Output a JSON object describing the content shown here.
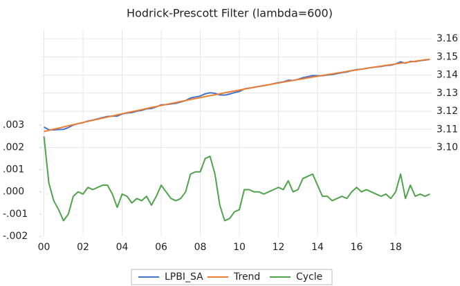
{
  "chart_data": {
    "type": "line",
    "title": "Hodrick-Prescott Filter (lambda=600)",
    "categories": [
      "00",
      null,
      null,
      null,
      null,
      null,
      null,
      null,
      "02",
      null,
      null,
      null,
      null,
      null,
      null,
      null,
      "04",
      null,
      null,
      null,
      null,
      null,
      null,
      null,
      "06",
      null,
      null,
      null,
      null,
      null,
      null,
      null,
      "08",
      null,
      null,
      null,
      null,
      null,
      null,
      null,
      "10",
      null,
      null,
      null,
      null,
      null,
      null,
      null,
      "12",
      null,
      null,
      null,
      null,
      null,
      null,
      null,
      "14",
      null,
      null,
      null,
      null,
      null,
      null,
      null,
      "16",
      null,
      null,
      null,
      null,
      null,
      null,
      null,
      "18",
      null,
      null,
      null,
      null,
      null,
      null,
      null
    ],
    "series": [
      {
        "name": "LPBI_SA",
        "color": "#4472c4",
        "axis": "y2",
        "values": [
          3.1113,
          3.1098,
          3.1097,
          3.1099,
          3.11,
          3.111,
          3.1124,
          3.1132,
          3.1137,
          3.1146,
          3.1151,
          3.1158,
          3.1165,
          3.1171,
          3.1173,
          3.1173,
          3.1185,
          3.119,
          3.1193,
          3.12,
          3.1205,
          3.1213,
          3.1215,
          3.1224,
          3.1235,
          3.1237,
          3.124,
          3.1244,
          3.1251,
          3.1259,
          3.1273,
          3.1279,
          3.1284,
          3.1296,
          3.1302,
          3.1299,
          3.129,
          3.1289,
          3.1295,
          3.1303,
          3.1309,
          3.1323,
          3.1328,
          3.1332,
          3.1337,
          3.1341,
          3.1346,
          3.1352,
          3.1358,
          3.1362,
          3.1371,
          3.137,
          3.1376,
          3.1385,
          3.1391,
          3.1397,
          3.1396,
          3.1396,
          3.14,
          3.1402,
          3.1408,
          3.1413,
          3.1417,
          3.1424,
          3.143,
          3.1432,
          3.1437,
          3.1441,
          3.1444,
          3.1447,
          3.1452,
          3.1454,
          3.1461,
          3.1473,
          3.1465,
          3.1475,
          3.1474,
          3.1479,
          3.1482,
          3.1486
        ]
      },
      {
        "name": "Trend",
        "color": "#ed7d31",
        "axis": "y2",
        "values": [
          3.1088,
          3.1094,
          3.1101,
          3.1107,
          3.1113,
          3.112,
          3.1126,
          3.1132,
          3.1138,
          3.1144,
          3.115,
          3.1156,
          3.1162,
          3.1168,
          3.1174,
          3.118,
          3.1186,
          3.1192,
          3.1198,
          3.1203,
          3.1209,
          3.1215,
          3.1221,
          3.1226,
          3.1232,
          3.1237,
          3.1243,
          3.1248,
          3.1254,
          3.1259,
          3.1265,
          3.127,
          3.1275,
          3.1281,
          3.1286,
          3.1291,
          3.1296,
          3.1302,
          3.1307,
          3.1312,
          3.1317,
          3.1322,
          3.1327,
          3.1332,
          3.1337,
          3.1342,
          3.1346,
          3.1351,
          3.1356,
          3.1361,
          3.1366,
          3.137,
          3.1375,
          3.1379,
          3.1384,
          3.1389,
          3.1393,
          3.1398,
          3.1402,
          3.1406,
          3.1411,
          3.1415,
          3.142,
          3.1424,
          3.1428,
          3.1432,
          3.1436,
          3.1441,
          3.1445,
          3.1449,
          3.1453,
          3.1457,
          3.1461,
          3.1465,
          3.1468,
          3.1472,
          3.1476,
          3.148,
          3.1484,
          3.1487
        ]
      },
      {
        "name": "Cycle",
        "color": "#4ea24a",
        "values": [
          0.0025,
          0.0004,
          -0.0004,
          -0.0008,
          -0.0013,
          -0.001,
          -0.0002,
          0,
          -0.0001,
          0.0002,
          0.0001,
          0.0002,
          0.0003,
          0.0003,
          -0.0001,
          -0.0007,
          -0.0001,
          -0.0002,
          -0.0005,
          -0.0003,
          -0.0004,
          -0.0002,
          -0.0006,
          -0.0002,
          0.0003,
          0,
          -0.0003,
          -0.0004,
          -0.0003,
          0,
          0.0008,
          0.0009,
          0.0009,
          0.0015,
          0.0016,
          0.0008,
          -0.0006,
          -0.0013,
          -0.0012,
          -0.0009,
          -0.0008,
          0.0001,
          0.0001,
          0,
          0,
          -0.0001,
          0,
          0.0001,
          0.0002,
          0.0001,
          0.0005,
          0,
          0.0001,
          0.0006,
          0.0007,
          0.0008,
          0.0003,
          -0.0002,
          -0.0002,
          -0.0004,
          -0.0003,
          -0.0002,
          -0.0003,
          0,
          0.0002,
          0,
          0.0001,
          0,
          -0.0001,
          -0.0002,
          -0.0001,
          -0.0003,
          0,
          0.0008,
          -0.0003,
          0.0003,
          -0.0002,
          -0.0001,
          -0.0002,
          -0.0001
        ]
      }
    ],
    "ylim": [
      -0.002,
      0.0073
    ],
    "yticks": [
      {
        "value": 0.003,
        "label": ".003"
      },
      {
        "value": 0.002,
        "label": ".002"
      },
      {
        "value": 0.001,
        "label": ".001"
      },
      {
        "value": 0,
        "label": ".000"
      },
      {
        "value": -0.001,
        "label": "-.001"
      },
      {
        "value": -0.002,
        "label": "-.002"
      }
    ],
    "y2lim": [
      3.051,
      3.165
    ],
    "y2ticks": [
      3.16,
      {
        "value": 3.15,
        "label": "3.15"
      },
      3.14,
      3.13,
      3.12,
      3.11,
      {
        "value": 3.1,
        "label": "3.10"
      }
    ],
    "grid": true,
    "legend": "bottom"
  }
}
